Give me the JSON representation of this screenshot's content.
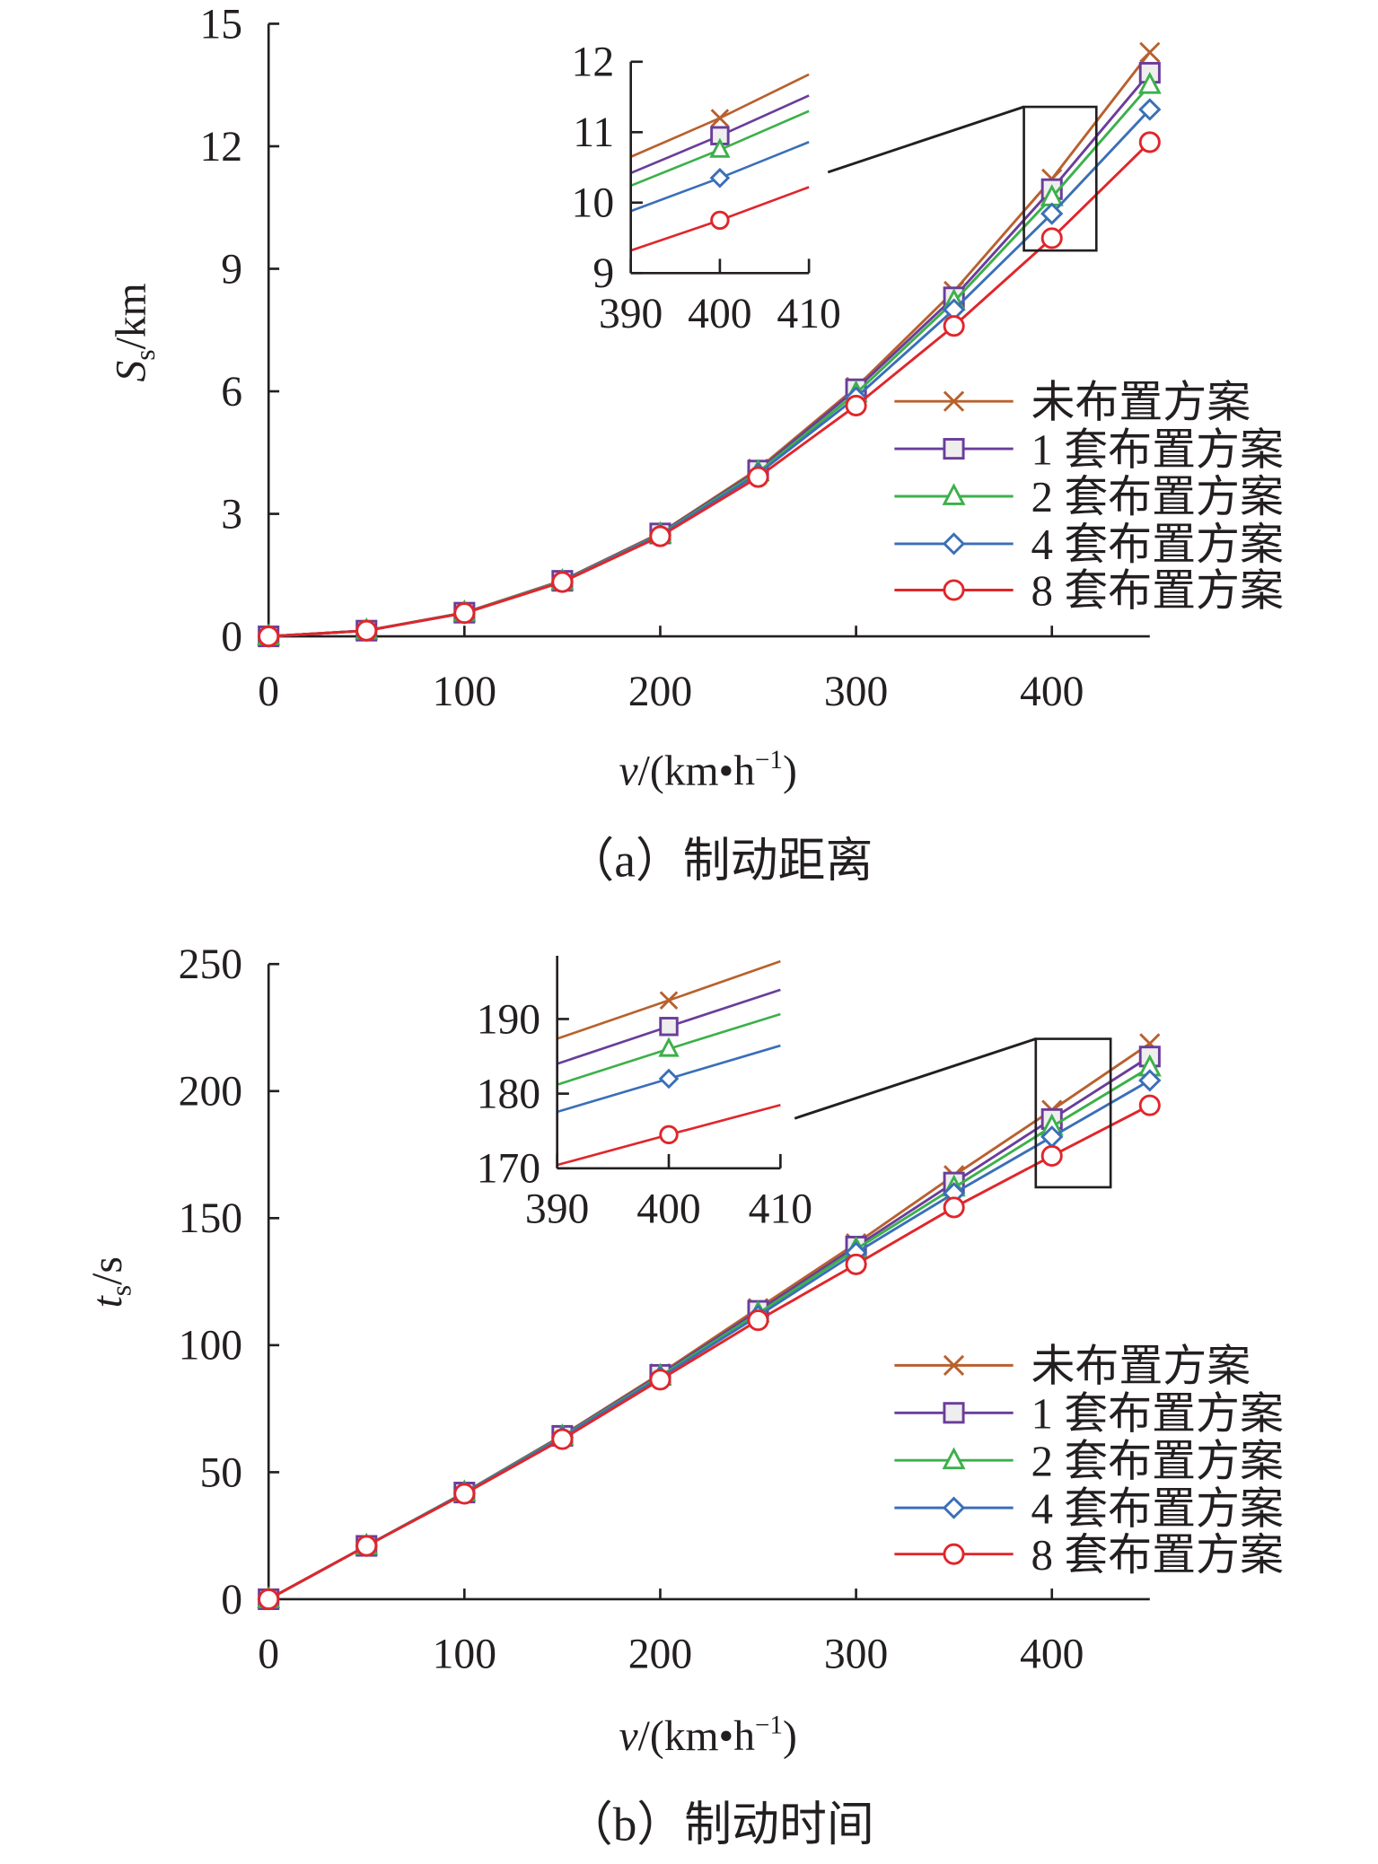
{
  "chart_data": [
    {
      "type": "line",
      "caption": "（a）制动距离",
      "xlabel": {
        "var": "v",
        "unit": "/(km•h",
        "sup": "−1",
        "close": ")"
      },
      "ylabel": {
        "var": "S",
        "sub": "s",
        "unit": "/km"
      },
      "xlim": [
        0,
        450
      ],
      "ylim": [
        0,
        15
      ],
      "xticks": [
        0,
        100,
        200,
        300,
        400
      ],
      "yticks": [
        0,
        3,
        6,
        9,
        12,
        15
      ],
      "x": [
        0,
        50,
        100,
        150,
        200,
        250,
        300,
        350,
        400,
        450
      ],
      "series": [
        {
          "name": "未布置方案",
          "marker": "x",
          "color": "#b8612e",
          "values": [
            0,
            0.14,
            0.58,
            1.37,
            2.53,
            4.1,
            6.1,
            8.45,
            11.2,
            14.3
          ]
        },
        {
          "name": "1 套布置方案",
          "marker": "square",
          "color": "#6a3d9a",
          "values": [
            0,
            0.14,
            0.58,
            1.36,
            2.52,
            4.06,
            6.05,
            8.3,
            10.95,
            13.8
          ]
        },
        {
          "name": "2 套布置方案",
          "marker": "triangle",
          "color": "#3cb04a",
          "values": [
            0,
            0.14,
            0.58,
            1.35,
            2.5,
            4.02,
            5.95,
            8.2,
            10.75,
            13.5
          ]
        },
        {
          "name": "4 套布置方案",
          "marker": "diamond",
          "color": "#3a6fb8",
          "values": [
            0,
            0.14,
            0.57,
            1.34,
            2.48,
            3.98,
            5.85,
            8.0,
            10.35,
            12.9
          ]
        },
        {
          "name": "8 套布置方案",
          "marker": "circle",
          "color": "#e0262b",
          "values": [
            0,
            0.14,
            0.57,
            1.33,
            2.45,
            3.9,
            5.65,
            7.6,
            9.75,
            12.1
          ]
        }
      ],
      "inset": {
        "xlim": [
          390,
          410
        ],
        "ylim": [
          9,
          12
        ],
        "xticks": [
          390,
          400,
          410
        ],
        "yticks": [
          9,
          10,
          11,
          12
        ]
      },
      "legend": "lower-right"
    },
    {
      "type": "line",
      "caption": "（b）制动时间",
      "xlabel": {
        "var": "v",
        "unit": "/(km•h",
        "sup": "−1",
        "close": ")"
      },
      "ylabel": {
        "var": "t",
        "sub": "s",
        "unit": "/s"
      },
      "xlim": [
        0,
        450
      ],
      "ylim": [
        0,
        250
      ],
      "xticks": [
        0,
        100,
        200,
        300,
        400
      ],
      "yticks": [
        0,
        50,
        100,
        150,
        200,
        250
      ],
      "x": [
        0,
        50,
        100,
        150,
        200,
        250,
        300,
        350,
        400,
        450
      ],
      "series": [
        {
          "name": "未布置方案",
          "marker": "x",
          "color": "#b8612e",
          "values": [
            0,
            21,
            42,
            64.5,
            88.8,
            114.5,
            140,
            166.8,
            192.5,
            218.7
          ]
        },
        {
          "name": "1 套布置方案",
          "marker": "square",
          "color": "#6a3d9a",
          "values": [
            0,
            21,
            42,
            64.3,
            88.3,
            113.5,
            138.8,
            164,
            189,
            213.6
          ]
        },
        {
          "name": "2 套布置方案",
          "marker": "triangle",
          "color": "#3cb04a",
          "values": [
            0,
            21,
            42,
            64,
            87.8,
            112.5,
            137.8,
            162,
            186,
            209.3
          ]
        },
        {
          "name": "4 套布置方案",
          "marker": "diamond",
          "color": "#3a6fb8",
          "values": [
            0,
            21,
            41.8,
            63.7,
            87.3,
            111.5,
            136.4,
            159.8,
            182,
            204.2
          ]
        },
        {
          "name": "8 套布置方案",
          "marker": "circle",
          "color": "#e0262b",
          "values": [
            0,
            21,
            41.5,
            63,
            86.4,
            109.8,
            131.8,
            154.2,
            174.5,
            194.4
          ]
        }
      ],
      "inset": {
        "xlim": [
          390,
          410
        ],
        "ylim": [
          170,
          198
        ],
        "xticks": [
          390,
          400,
          410
        ],
        "yticks": [
          170,
          180,
          190
        ]
      },
      "legend": "lower-right"
    }
  ]
}
